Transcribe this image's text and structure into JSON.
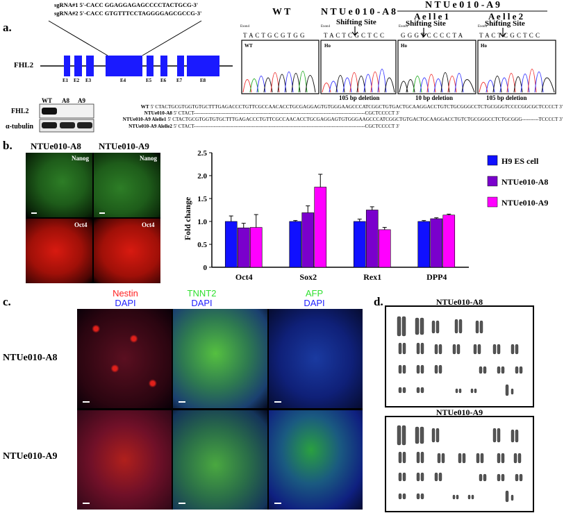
{
  "panel_a": {
    "letter": "a.",
    "sgrna1": "sgRNA#1 5'-CACC GGAGGAGAGCCCCTACTGCG-3'",
    "sgrna2": "sgRNA#2 5'-CACC GTGTTTCCTAGGGGAGCGCCG-3'",
    "gene": "FHL2",
    "exons": [
      "E1",
      "E2",
      "E3",
      "E4",
      "E5",
      "E6",
      "E7",
      "E8"
    ],
    "wb_lanes": [
      "WT",
      "A8",
      "A9"
    ],
    "wb_rows": [
      "FHL2",
      "α-tubulin"
    ],
    "seq_header_wt": "W T",
    "seq_header_a8": "N T U e 0 1 0 - A 8",
    "seq_header_a9": "N T U e 0 1 0 - A 9",
    "allele1": "A e l l e 1",
    "allele2": "A e l l e 2",
    "shifting_site": "Shifting Site",
    "exon4_label": "Exon4",
    "trace_wt_seq": "T A C T G C G T G G",
    "trace_a8_seq": "T A C T C G C T C C",
    "trace_a9a_seq": "G G G T C C C C T A",
    "trace_a9b_seq": "T A C T C G C T C C",
    "trace_wt_tag": "WT",
    "trace_ho_tag": "Ho",
    "del_a8": "105 bp deletion",
    "del_a9a": "10 bp deletion",
    "del_a9b": "105 bp deletion",
    "align_rows": [
      {
        "name": "WT",
        "seq": "5' CTACTGCGTGGTGTGCTTTGAGACCCTGTTCGCCAACACCTGCGAGGAGTGTGGGAAGCCCATCGGCTGTGACTGCAAGGACCTGTCTGCGGGCCTCTGCGGGTCCCCGGCGCTCCCCT 3'"
      },
      {
        "name": "NTUe010-A8",
        "seq": "5' CTACT-------------------------------------------------------------------------------------------------------CGCTCCCCT 3'"
      },
      {
        "name": "NTUe010-A9 Alelle1",
        "seq": "5' CTACTGCGTGGTGTGCTTTGAGACCCTGTTCGCCAACACCTGCGAGGAGTGTGGGAAGCCCATCGGCTGTGACTGCAAGGACCTGTCTGCGGGCCTCTGCGGG----------TCCCCT 3'"
      },
      {
        "name": "NTUe010-A9 Alelle2",
        "seq": "5' CTACT-------------------------------------------------------------------------------------------------------CGCTCCCCT 3'"
      }
    ]
  },
  "panel_b": {
    "letter": "b.",
    "col_titles": [
      "NTUe010-A8",
      "NTUe010-A9"
    ],
    "stain_top": "Nanog",
    "stain_bottom": "Oct4"
  },
  "chart_data": {
    "type": "bar",
    "categories": [
      "Oct4",
      "Sox2",
      "Rex1",
      "DPP4"
    ],
    "series": [
      {
        "name": "H9 ES cell",
        "values": [
          1.0,
          1.0,
          1.0,
          1.0
        ],
        "errors": [
          0.12,
          0.02,
          0.05,
          0.02
        ],
        "color": "#1010ff"
      },
      {
        "name": "NTUe010-A8",
        "values": [
          0.86,
          1.19,
          1.25,
          1.06
        ],
        "errors": [
          0.1,
          0.15,
          0.07,
          0.02
        ],
        "color": "#7a00cc"
      },
      {
        "name": "NTUe010-A9",
        "values": [
          0.87,
          1.75,
          0.82,
          1.14
        ],
        "errors": [
          0.28,
          0.28,
          0.05,
          0.02
        ],
        "color": "#ff00ff"
      }
    ],
    "ylabel": "Fold change",
    "ylim": [
      0,
      2.5
    ],
    "yticks": [
      "0",
      "0.5",
      "1.0",
      "1.5",
      "2.0",
      "2.5"
    ],
    "legend_position": "right"
  },
  "panel_c": {
    "letter": "c.",
    "markers": [
      {
        "name": "Nestin",
        "color": "#ff2020"
      },
      {
        "name": "TNNT2",
        "color": "#30e030"
      },
      {
        "name": "AFP",
        "color": "#30e030"
      }
    ],
    "counterstain": "DAPI",
    "rows": [
      "NTUe010-A8",
      "NTUe010-A9"
    ]
  },
  "panel_d": {
    "letter": "d.",
    "titles": [
      "NTUe010-A8",
      "NTUe010-A9"
    ]
  }
}
